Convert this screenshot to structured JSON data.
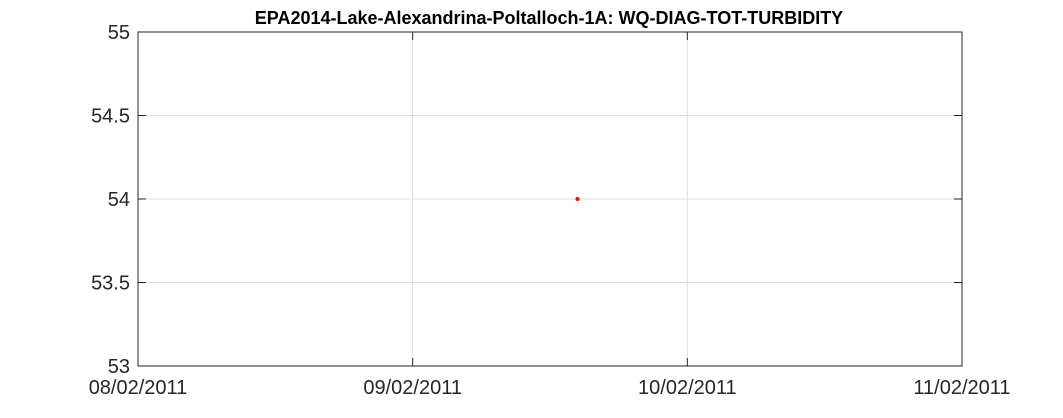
{
  "chart_data": {
    "type": "scatter",
    "title": "EPA2014-Lake-Alexandrina-Poltalloch-1A: WQ-DIAG-TOT-TURBIDITY",
    "xlabel": "",
    "ylabel": "",
    "x_axis_type": "date",
    "x_ticks": [
      "08/02/2011",
      "09/02/2011",
      "10/02/2011",
      "11/02/2011"
    ],
    "xlim": [
      "2011-02-08",
      "2011-02-11"
    ],
    "y_ticks": [
      "53",
      "53.5",
      "54",
      "54.5",
      "55"
    ],
    "ylim": [
      53,
      55
    ],
    "grid": true,
    "legend": "none",
    "series": [
      {
        "color": "#ff0000",
        "marker": "dot",
        "points": [
          {
            "x": "2011-02-09T14:24",
            "y": 54
          }
        ]
      }
    ]
  }
}
